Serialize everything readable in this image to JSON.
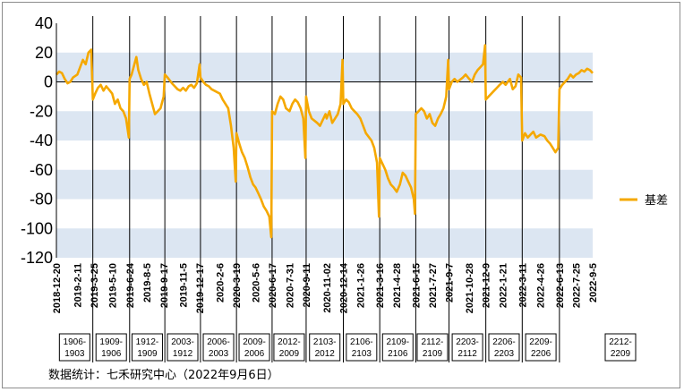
{
  "chart_data": {
    "type": "line",
    "series": [
      {
        "name": "基差",
        "color": "#F5A800",
        "points": [
          [
            "2018-12-20",
            5
          ],
          [
            "2018-12-27",
            7
          ],
          [
            "2019-01-03",
            6
          ],
          [
            "2019-01-10",
            2
          ],
          [
            "2019-01-17",
            -1
          ],
          [
            "2019-01-24",
            0
          ],
          [
            "2019-01-31",
            3
          ],
          [
            "2019-02-11",
            5
          ],
          [
            "2019-02-18",
            10
          ],
          [
            "2019-02-25",
            15
          ],
          [
            "2019-03-04",
            12
          ],
          [
            "2019-03-11",
            20
          ],
          [
            "2019-03-18",
            22
          ],
          [
            "2019-03-22",
            -12
          ],
          [
            "2019-03-28",
            -8
          ],
          [
            "2019-04-04",
            -4
          ],
          [
            "2019-04-11",
            -2
          ],
          [
            "2019-04-18",
            -6
          ],
          [
            "2019-04-25",
            -3
          ],
          [
            "2019-05-01",
            -5
          ],
          [
            "2019-05-10",
            -8
          ],
          [
            "2019-05-17",
            -15
          ],
          [
            "2019-05-24",
            -12
          ],
          [
            "2019-05-31",
            -18
          ],
          [
            "2019-06-07",
            -20
          ],
          [
            "2019-06-14",
            -25
          ],
          [
            "2019-06-21",
            -38
          ],
          [
            "2019-06-23",
            2
          ],
          [
            "2019-06-28",
            5
          ],
          [
            "2019-07-05",
            12
          ],
          [
            "2019-07-10",
            17
          ],
          [
            "2019-07-15",
            8
          ],
          [
            "2019-07-22",
            2
          ],
          [
            "2019-07-29",
            -2
          ],
          [
            "2019-08-05",
            0
          ],
          [
            "2019-08-12",
            -8
          ],
          [
            "2019-08-19",
            -15
          ],
          [
            "2019-08-26",
            -22
          ],
          [
            "2019-09-02",
            -20
          ],
          [
            "2019-09-09",
            -18
          ],
          [
            "2019-09-17",
            -10
          ],
          [
            "2019-09-20",
            5
          ],
          [
            "2019-09-27",
            3
          ],
          [
            "2019-10-08",
            -1
          ],
          [
            "2019-10-15",
            -3
          ],
          [
            "2019-10-22",
            -5
          ],
          [
            "2019-10-29",
            -6
          ],
          [
            "2019-11-05",
            -4
          ],
          [
            "2019-11-12",
            -6
          ],
          [
            "2019-11-19",
            -3
          ],
          [
            "2019-11-26",
            -2
          ],
          [
            "2019-12-03",
            -4
          ],
          [
            "2019-12-10",
            -1
          ],
          [
            "2019-12-17",
            12
          ],
          [
            "2019-12-19",
            3
          ],
          [
            "2019-12-26",
            0
          ],
          [
            "2020-01-02",
            -2
          ],
          [
            "2020-01-09",
            -3
          ],
          [
            "2020-01-16",
            -5
          ],
          [
            "2020-01-23",
            -6
          ],
          [
            "2020-02-06",
            -8
          ],
          [
            "2020-02-13",
            -12
          ],
          [
            "2020-02-20",
            -15
          ],
          [
            "2020-02-27",
            -18
          ],
          [
            "2020-03-05",
            -30
          ],
          [
            "2020-03-12",
            -45
          ],
          [
            "2020-03-17",
            -68
          ],
          [
            "2020-03-19",
            -35
          ],
          [
            "2020-03-26",
            -42
          ],
          [
            "2020-04-02",
            -48
          ],
          [
            "2020-04-09",
            -52
          ],
          [
            "2020-04-16",
            -58
          ],
          [
            "2020-04-23",
            -65
          ],
          [
            "2020-04-30",
            -70
          ],
          [
            "2020-05-06",
            -72
          ],
          [
            "2020-05-13",
            -76
          ],
          [
            "2020-05-20",
            -80
          ],
          [
            "2020-05-27",
            -85
          ],
          [
            "2020-06-03",
            -88
          ],
          [
            "2020-06-10",
            -92
          ],
          [
            "2020-06-15",
            -106
          ],
          [
            "2020-06-17",
            -20
          ],
          [
            "2020-06-24",
            -22
          ],
          [
            "2020-07-01",
            -15
          ],
          [
            "2020-07-08",
            -10
          ],
          [
            "2020-07-15",
            -12
          ],
          [
            "2020-07-22",
            -18
          ],
          [
            "2020-07-31",
            -20
          ],
          [
            "2020-08-07",
            -15
          ],
          [
            "2020-08-14",
            -12
          ],
          [
            "2020-08-21",
            -14
          ],
          [
            "2020-08-28",
            -18
          ],
          [
            "2020-09-04",
            -25
          ],
          [
            "2020-09-09",
            -52
          ],
          [
            "2020-09-11",
            -10
          ],
          [
            "2020-09-18",
            -20
          ],
          [
            "2020-09-25",
            -25
          ],
          [
            "2020-10-09",
            -28
          ],
          [
            "2020-10-16",
            -30
          ],
          [
            "2020-10-23",
            -26
          ],
          [
            "2020-10-30",
            -22
          ],
          [
            "2020-11-02",
            -25
          ],
          [
            "2020-11-09",
            -20
          ],
          [
            "2020-11-16",
            -28
          ],
          [
            "2020-11-23",
            -25
          ],
          [
            "2020-11-30",
            -22
          ],
          [
            "2020-12-07",
            -15
          ],
          [
            "2020-12-12",
            15
          ],
          [
            "2020-12-14",
            -15
          ],
          [
            "2020-12-21",
            -12
          ],
          [
            "2020-12-28",
            -14
          ],
          [
            "2021-01-04",
            -18
          ],
          [
            "2021-01-11",
            -20
          ],
          [
            "2021-01-18",
            -22
          ],
          [
            "2021-01-26",
            -25
          ],
          [
            "2021-02-02",
            -30
          ],
          [
            "2021-02-09",
            -35
          ],
          [
            "2021-02-23",
            -40
          ],
          [
            "2021-03-02",
            -45
          ],
          [
            "2021-03-09",
            -55
          ],
          [
            "2021-03-14",
            -92
          ],
          [
            "2021-03-16",
            -52
          ],
          [
            "2021-03-23",
            -56
          ],
          [
            "2021-03-30",
            -60
          ],
          [
            "2021-04-06",
            -66
          ],
          [
            "2021-04-13",
            -70
          ],
          [
            "2021-04-20",
            -72
          ],
          [
            "2021-04-28",
            -75
          ],
          [
            "2021-05-06",
            -70
          ],
          [
            "2021-05-13",
            -62
          ],
          [
            "2021-05-20",
            -64
          ],
          [
            "2021-05-27",
            -68
          ],
          [
            "2021-06-03",
            -72
          ],
          [
            "2021-06-10",
            -80
          ],
          [
            "2021-06-13",
            -90
          ],
          [
            "2021-06-15",
            -22
          ],
          [
            "2021-06-22",
            -20
          ],
          [
            "2021-06-29",
            -18
          ],
          [
            "2021-07-06",
            -20
          ],
          [
            "2021-07-13",
            -25
          ],
          [
            "2021-07-20",
            -22
          ],
          [
            "2021-07-27",
            -28
          ],
          [
            "2021-08-03",
            -30
          ],
          [
            "2021-08-10",
            -25
          ],
          [
            "2021-08-17",
            -22
          ],
          [
            "2021-08-24",
            -18
          ],
          [
            "2021-08-31",
            -10
          ],
          [
            "2021-09-05",
            15
          ],
          [
            "2021-09-07",
            -5
          ],
          [
            "2021-09-14",
            0
          ],
          [
            "2021-09-21",
            2
          ],
          [
            "2021-09-28",
            0
          ],
          [
            "2021-10-12",
            3
          ],
          [
            "2021-10-19",
            5
          ],
          [
            "2021-10-28",
            2
          ],
          [
            "2021-11-04",
            0
          ],
          [
            "2021-11-11",
            5
          ],
          [
            "2021-11-18",
            8
          ],
          [
            "2021-11-25",
            10
          ],
          [
            "2021-12-02",
            12
          ],
          [
            "2021-12-07",
            25
          ],
          [
            "2021-12-09",
            -12
          ],
          [
            "2021-12-16",
            -10
          ],
          [
            "2021-12-23",
            -8
          ],
          [
            "2021-12-30",
            -6
          ],
          [
            "2022-01-06",
            -4
          ],
          [
            "2022-01-13",
            -2
          ],
          [
            "2022-01-21",
            0
          ],
          [
            "2022-01-28",
            -2
          ],
          [
            "2022-02-08",
            2
          ],
          [
            "2022-02-15",
            -5
          ],
          [
            "2022-02-22",
            -3
          ],
          [
            "2022-03-01",
            5
          ],
          [
            "2022-03-08",
            3
          ],
          [
            "2022-03-11",
            -40
          ],
          [
            "2022-03-18",
            -35
          ],
          [
            "2022-03-25",
            -38
          ],
          [
            "2022-04-01",
            -36
          ],
          [
            "2022-04-08",
            -34
          ],
          [
            "2022-04-15",
            -38
          ],
          [
            "2022-04-26",
            -36
          ],
          [
            "2022-05-06",
            -37
          ],
          [
            "2022-05-13",
            -40
          ],
          [
            "2022-05-20",
            -42
          ],
          [
            "2022-05-27",
            -45
          ],
          [
            "2022-06-03",
            -48
          ],
          [
            "2022-06-10",
            -45
          ],
          [
            "2022-06-13",
            -5
          ],
          [
            "2022-06-20",
            -2
          ],
          [
            "2022-06-27",
            0
          ],
          [
            "2022-07-04",
            2
          ],
          [
            "2022-07-11",
            5
          ],
          [
            "2022-07-18",
            3
          ],
          [
            "2022-07-25",
            5
          ],
          [
            "2022-08-01",
            6
          ],
          [
            "2022-08-08",
            8
          ],
          [
            "2022-08-15",
            7
          ],
          [
            "2022-08-22",
            9
          ],
          [
            "2022-08-29",
            8
          ],
          [
            "2022-09-05",
            6
          ]
        ]
      }
    ],
    "x_ticks": [
      "2018-12-20",
      "2019-2-11",
      "2019-3-25",
      "2019-5-10",
      "2019-6-24",
      "2019-8-5",
      "2019-9-17",
      "2019-11-5",
      "2019-12-17",
      "2020-2-6",
      "2020-3-19",
      "2020-5-6",
      "2020-6-17",
      "2020-7-31",
      "2020-9-11",
      "2020-11-02",
      "2020-12-14",
      "2021-1-26",
      "2021-3-16",
      "2021-4-28",
      "2021-6-15",
      "2021-7-27",
      "2021-9-7",
      "2021-10-28",
      "2021-12-9",
      "2022-1-21",
      "2022-3-11",
      "2022-4-26",
      "2022-6-13",
      "2022-7-25",
      "2022-9-5"
    ],
    "ylim": [
      -120,
      40
    ],
    "y_ticks": [
      40,
      20,
      0,
      -20,
      -40,
      -60,
      -80,
      -100,
      -120
    ],
    "bands": [
      [
        0,
        20
      ],
      [
        -40,
        -20
      ],
      [
        -80,
        -60
      ],
      [
        -120,
        -100
      ]
    ],
    "band_color": "#DCE6F2",
    "contract_rolls": [
      "2019-03-22",
      "2019-06-23",
      "2019-09-20",
      "2019-12-19",
      "2020-03-19",
      "2020-06-17",
      "2020-09-11",
      "2020-12-14",
      "2021-03-16",
      "2021-06-15",
      "2021-09-07",
      "2021-12-09",
      "2022-03-11",
      "2022-06-13"
    ],
    "contract_labels": [
      "1906-1903",
      "1909-1906",
      "1912-1909",
      "2003-1912",
      "2006-2003",
      "2009-2006",
      "2012-2009",
      "2103-2012",
      "2106-2103",
      "2109-2106",
      "2112-2109",
      "2203-2112",
      "2206-2203",
      "2209-2206",
      "2212-2209"
    ],
    "legend": {
      "label": "基差",
      "position": "right"
    }
  },
  "source_note": "数据统计：七禾研究中心（2022年9月6日）"
}
